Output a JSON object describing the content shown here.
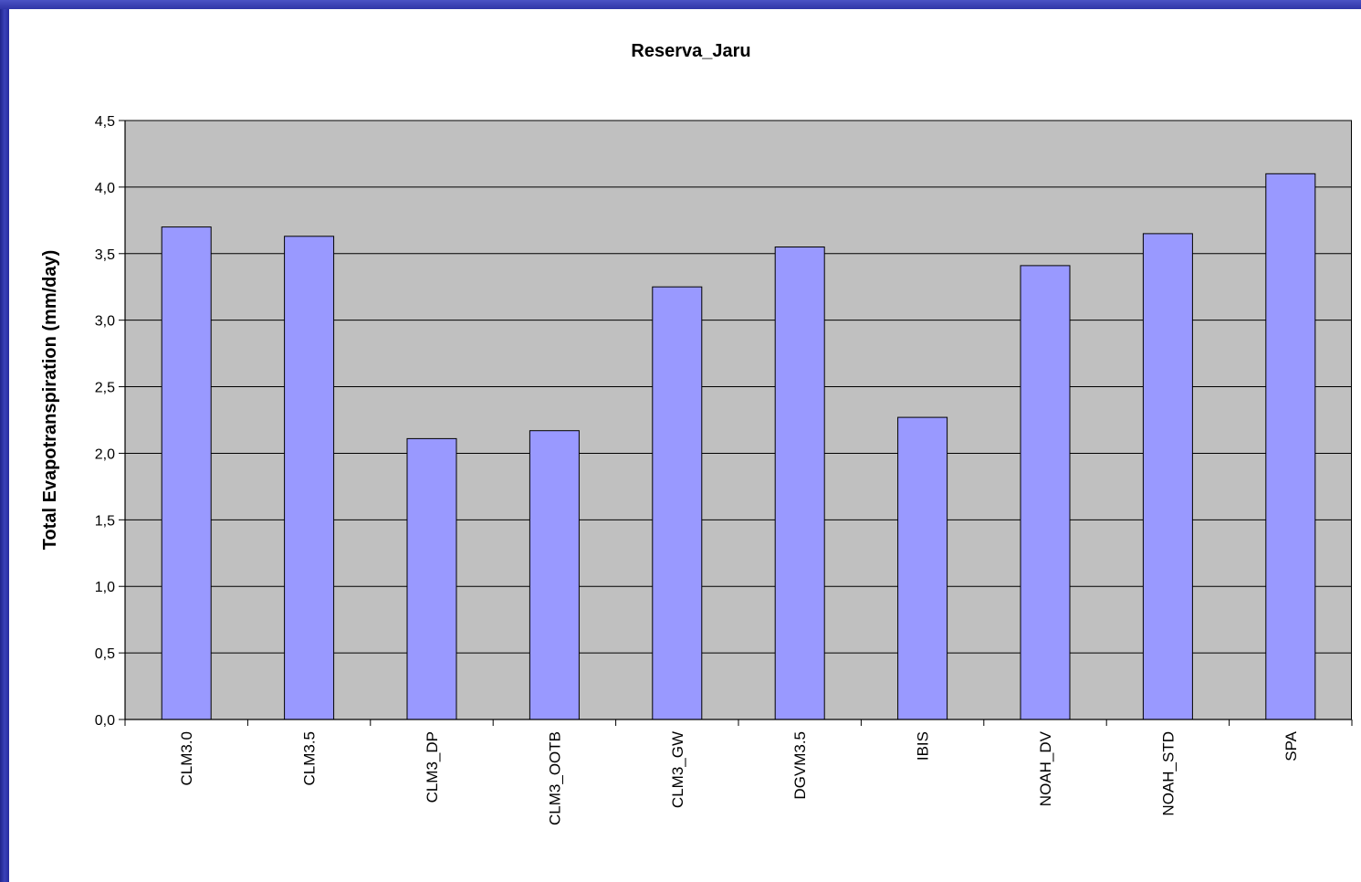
{
  "chart_data": {
    "type": "bar",
    "title": "Reserva_Jaru",
    "xlabel": "",
    "ylabel": "Total Evapotranspiration (mm/day)",
    "ylim": [
      0,
      4.5
    ],
    "ytick_step": 0.5,
    "ytick_labels": [
      "0,0",
      "0,5",
      "1,0",
      "1,5",
      "2,0",
      "2,5",
      "3,0",
      "3,5",
      "4,0",
      "4,5"
    ],
    "categories": [
      "CLM3.0",
      "CLM3.5",
      "CLM3_DP",
      "CLM3_OOTB",
      "CLM3_GW",
      "DGVM3.5",
      "IBIS",
      "NOAH_DV",
      "NOAH_STD",
      "SPA"
    ],
    "values": [
      3.7,
      3.63,
      2.11,
      2.17,
      3.25,
      3.55,
      2.27,
      3.41,
      3.65,
      4.1
    ],
    "grid": true,
    "legend": "none",
    "colors": {
      "bar_fill": "#9999ff",
      "bar_stroke": "#000000",
      "plot_background": "#c0c0c0",
      "gridline": "#000000"
    }
  }
}
